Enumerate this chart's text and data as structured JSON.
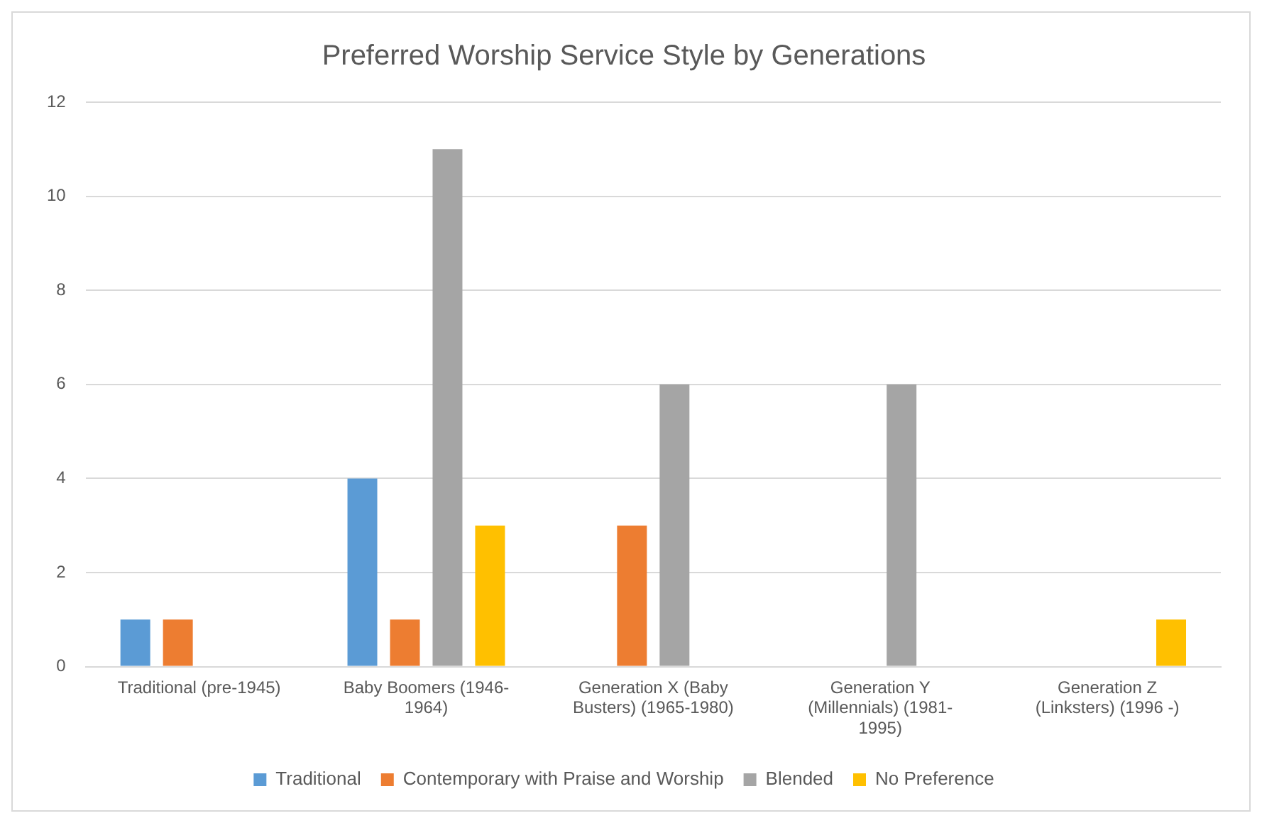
{
  "chart_data": {
    "type": "bar",
    "title": "Preferred Worship Service Style by Generations",
    "categories": [
      "Traditional (pre-1945)",
      "Baby Boomers (1946-1964)",
      "Generation X (Baby Busters) (1965-1980)",
      "Generation Y (Millennials) (1981-1995)",
      "Generation Z (Linksters) (1996 -)"
    ],
    "series": [
      {
        "name": "Traditional",
        "color": "#5b9bd5",
        "values": [
          1,
          4,
          0,
          0,
          0
        ]
      },
      {
        "name": "Contemporary with Praise and Worship",
        "color": "#ed7d31",
        "values": [
          1,
          1,
          3,
          0,
          0
        ]
      },
      {
        "name": "Blended",
        "color": "#a5a5a5",
        "values": [
          0,
          11,
          6,
          6,
          0
        ]
      },
      {
        "name": "No Preference",
        "color": "#ffc000",
        "values": [
          0,
          3,
          0,
          0,
          1
        ]
      }
    ],
    "ylim": [
      0,
      12
    ],
    "yticks": [
      0,
      2,
      4,
      6,
      8,
      10,
      12
    ],
    "grid": "y",
    "legend": "bottom"
  }
}
